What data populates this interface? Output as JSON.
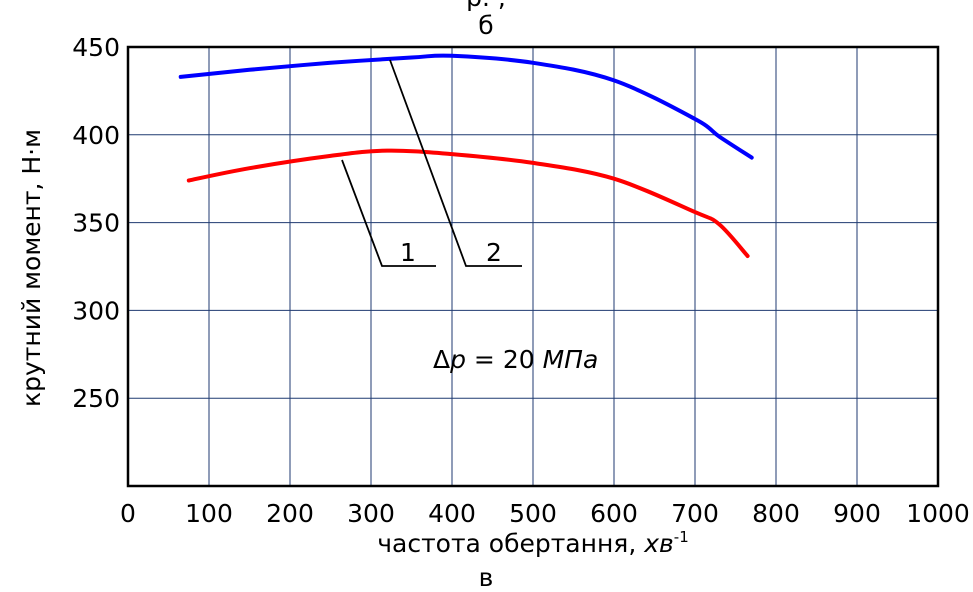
{
  "chart_data": {
    "type": "line",
    "title": "б",
    "top_fragment": "р. , ",
    "xlabel": "частота обертання, ",
    "xunit_italic": "хв",
    "xunit_sup": "-1",
    "ylabel": "крутний момент, Н·м",
    "caption": "в",
    "xlim": [
      0,
      1000
    ],
    "ylim": [
      200,
      450
    ],
    "x_ticks": [
      "0",
      "100",
      "200",
      "300",
      "400",
      "500",
      "600",
      "700",
      "800",
      "900",
      "1000"
    ],
    "y_ticks": [
      "250",
      "300",
      "350",
      "400",
      "450"
    ],
    "grid": true,
    "annotation": {
      "delta": "Δ",
      "var": "p",
      "eq": " = 20 ",
      "unit": "МПа"
    },
    "series": [
      {
        "name": "1",
        "color": "#ff0000",
        "x": [
          75,
          150,
          250,
          320,
          400,
          500,
          600,
          700,
          730,
          765
        ],
        "y": [
          374,
          381,
          388,
          391,
          389,
          384,
          375,
          356,
          349,
          331
        ]
      },
      {
        "name": "2",
        "color": "#0000ff",
        "x": [
          65,
          150,
          250,
          350,
          400,
          500,
          600,
          700,
          730,
          770
        ],
        "y": [
          433,
          437,
          441,
          444,
          445,
          441,
          431,
          409,
          399,
          387
        ]
      }
    ]
  }
}
